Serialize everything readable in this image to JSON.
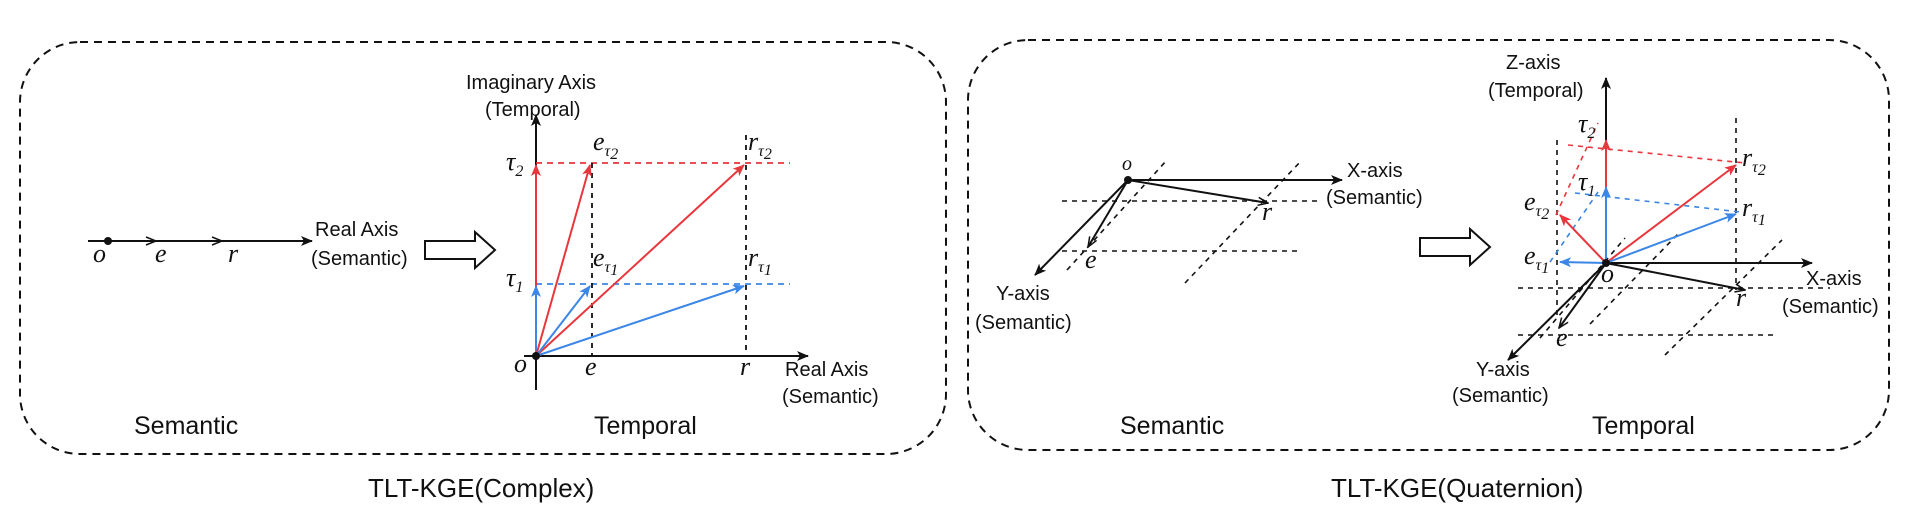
{
  "colors": {
    "ink": "#111111",
    "red": "#e8363c",
    "blue": "#3b86e6"
  },
  "complex": {
    "caption": "TLT-KGE(Complex)",
    "semantic_label": "Semantic",
    "temporal_label": "Temporal",
    "line_real_axis": [
      "Real Axis",
      "(Semantic)"
    ],
    "imag_axis": [
      "Imaginary Axis",
      "(Temporal)"
    ],
    "real_axis": [
      "Real Axis",
      "(Semantic)"
    ],
    "sym_o": "o",
    "sym_e": "e",
    "sym_r": "r",
    "sym_tau": "τ",
    "sub_1": "1",
    "sub_2": "2"
  },
  "quaternion": {
    "caption": "TLT-KGE(Quaternion)",
    "semantic_label": "Semantic",
    "temporal_label": "Temporal",
    "x_axis": [
      "X-axis",
      "(Semantic)"
    ],
    "y_axis": [
      "Y-axis",
      "(Semantic)"
    ],
    "z_axis": [
      "Z-axis",
      "(Temporal)"
    ],
    "x_axis_right": [
      "X-axis",
      "(Semantic)"
    ],
    "y_axis_right": [
      "Y-axis",
      "(Semantic)"
    ]
  }
}
